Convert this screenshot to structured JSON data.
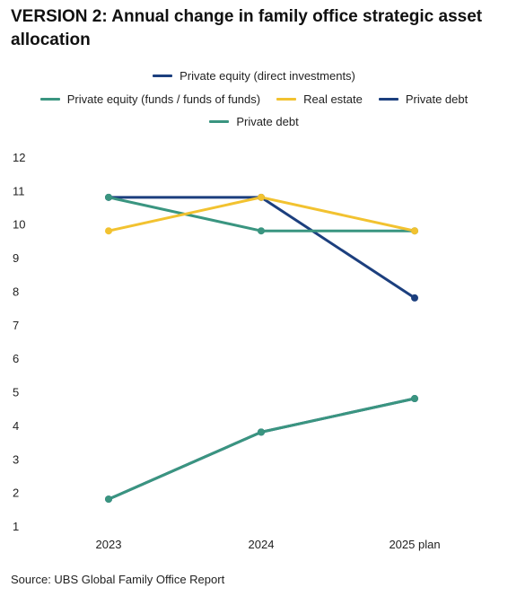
{
  "title": "VERSION 2: Annual change in family office strategic asset allocation",
  "source": "Source: UBS Global Family Office Report",
  "colors": {
    "navy": "#1c3f7e",
    "teal": "#3a9580",
    "gold": "#f2c230"
  },
  "chart_data": {
    "type": "line",
    "categories": [
      "2023",
      "2024",
      "2025 plan"
    ],
    "ylim": [
      1,
      12
    ],
    "yticks": [
      1,
      2,
      3,
      4,
      5,
      6,
      7,
      8,
      9,
      10,
      11,
      12
    ],
    "grid": false,
    "legend_position": "top-center",
    "series": [
      {
        "name": "Private equity (direct investments)",
        "color": "#1c3f7e",
        "values": [
          10.8,
          10.8,
          7.8
        ]
      },
      {
        "name": "Private equity (funds / funds of funds)",
        "color": "#3a9580",
        "values": [
          10.8,
          9.8,
          9.8
        ]
      },
      {
        "name": "Real estate",
        "color": "#f2c230",
        "values": [
          9.8,
          10.8,
          9.8
        ]
      },
      {
        "name": "Private debt",
        "color": "#1c3f7e",
        "values": [
          1.8,
          3.8,
          4.8
        ]
      },
      {
        "name": "Private debt",
        "color": "#3a9580",
        "values": [
          1.8,
          3.8,
          4.8
        ]
      }
    ]
  }
}
